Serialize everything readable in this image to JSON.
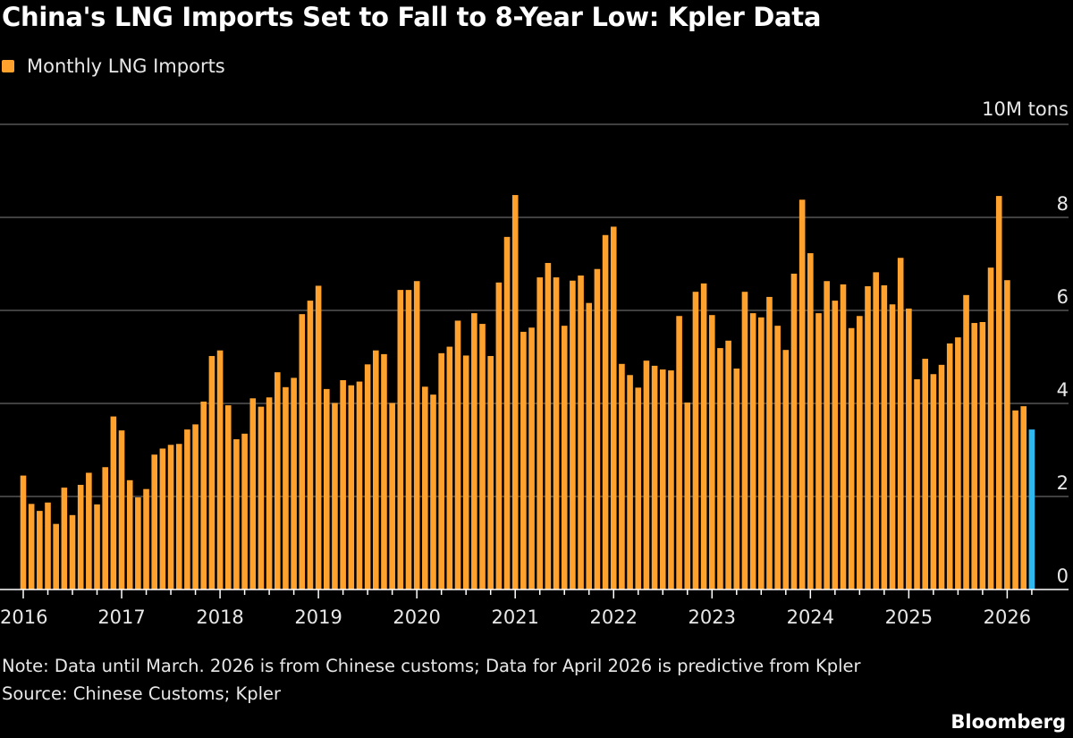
{
  "chart_data": {
    "type": "bar",
    "title": "China's LNG Imports Set to Fall to 8-Year Low: Kpler Data",
    "legend": [
      {
        "name": "Monthly LNG Imports",
        "color": "#ffa12d"
      }
    ],
    "legend_placement": "top-left",
    "unit_label": "10M tons",
    "ylim": [
      0,
      10
    ],
    "yticks": [
      0,
      2,
      4,
      6,
      8
    ],
    "grid": true,
    "x_start": "2016-01",
    "x_end": "2026-04",
    "xtick_labels": [
      "2016",
      "2017",
      "2018",
      "2019",
      "2020",
      "2021",
      "2022",
      "2023",
      "2024",
      "2025",
      "2026"
    ],
    "colors": {
      "actual": "#ffa12d",
      "predicted": "#2db8f0"
    },
    "predicted_from": "2026-04",
    "values": [
      2.45,
      1.84,
      1.69,
      1.87,
      1.41,
      2.19,
      1.6,
      2.25,
      2.51,
      1.83,
      2.63,
      3.72,
      3.42,
      2.35,
      1.98,
      2.16,
      2.9,
      3.03,
      3.11,
      3.13,
      3.44,
      3.55,
      4.04,
      5.02,
      5.14,
      3.96,
      3.23,
      3.35,
      4.11,
      3.93,
      4.13,
      4.67,
      4.35,
      4.55,
      5.92,
      6.21,
      6.53,
      4.31,
      4.01,
      4.5,
      4.39,
      4.47,
      4.84,
      5.14,
      5.06,
      4.01,
      6.44,
      6.44,
      6.63,
      4.36,
      4.19,
      5.08,
      5.22,
      5.78,
      5.03,
      5.94,
      5.71,
      5.02,
      6.6,
      7.58,
      8.48,
      5.54,
      5.63,
      6.71,
      7.02,
      6.71,
      5.67,
      6.64,
      6.75,
      6.16,
      6.89,
      7.62,
      7.8,
      4.85,
      4.61,
      4.34,
      4.92,
      4.81,
      4.73,
      4.71,
      5.88,
      4.02,
      6.4,
      6.58,
      5.9,
      5.19,
      5.35,
      4.75,
      6.4,
      5.94,
      5.85,
      6.29,
      5.67,
      5.15,
      6.79,
      8.38,
      7.23,
      5.94,
      6.63,
      6.21,
      6.56,
      5.62,
      5.88,
      6.52,
      6.82,
      6.54,
      6.13,
      7.13,
      6.04,
      4.52,
      4.96,
      4.63,
      4.83,
      5.29,
      5.42,
      6.33,
      5.73,
      5.75,
      6.92,
      8.46,
      6.65,
      3.85,
      3.94,
      3.44
    ]
  },
  "notes": {
    "note": "Note: Data until March. 2026 is from Chinese customs; Data for April 2026 is predictive from Kpler",
    "source": "Source: Chinese Customs; Kpler"
  },
  "brand": "Bloomberg"
}
